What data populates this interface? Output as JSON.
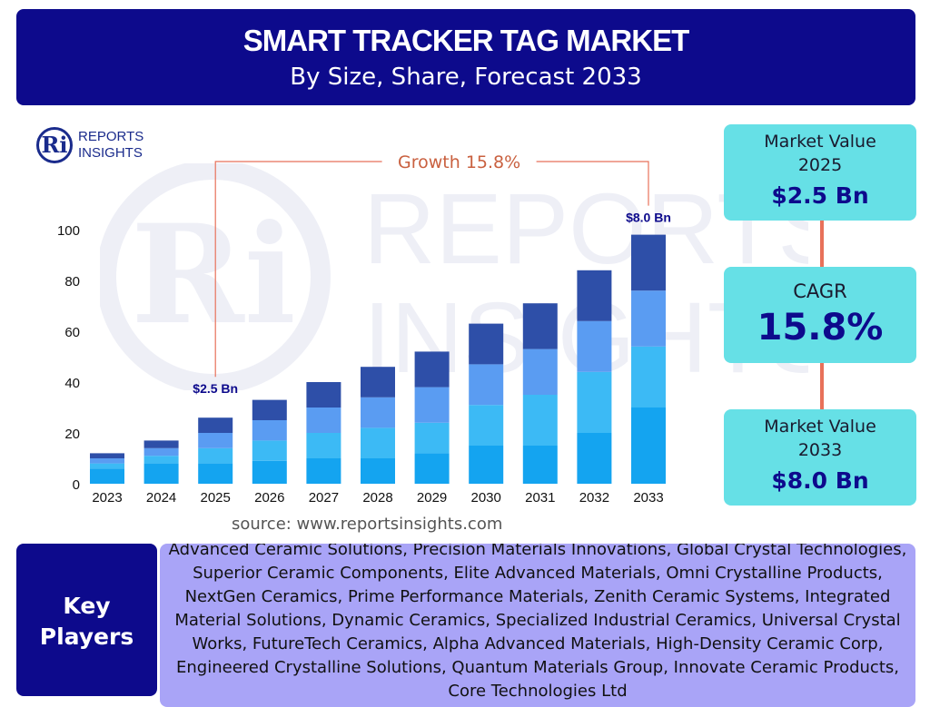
{
  "header": {
    "title": "SMART TRACKER TAG MARKET",
    "subtitle": "By Size, Share, Forecast 2033"
  },
  "logo": {
    "line1": "REPORTS",
    "line2": "INSIGHTS",
    "mark": "Ri"
  },
  "colors": {
    "header_bg": "#0d0a8c",
    "card_bg": "#66e0e6",
    "players_bg": "#a9a4f7",
    "growth_line": "#e8715a",
    "segments": [
      "#14a4f0",
      "#3cbaf5",
      "#5a9cf2",
      "#2e4fa8"
    ]
  },
  "chart_data": {
    "type": "bar",
    "stacked": true,
    "categories": [
      "2023",
      "2024",
      "2025",
      "2026",
      "2027",
      "2028",
      "2029",
      "2030",
      "2031",
      "2032",
      "2033"
    ],
    "series": [
      {
        "values": [
          6,
          8,
          8,
          9,
          10,
          10,
          12,
          15,
          15,
          20,
          30
        ]
      },
      {
        "values": [
          2,
          3,
          6,
          8,
          10,
          12,
          12,
          16,
          20,
          24,
          24
        ]
      },
      {
        "values": [
          2,
          3,
          6,
          8,
          10,
          12,
          14,
          16,
          18,
          20,
          22
        ]
      },
      {
        "values": [
          2,
          3,
          6,
          8,
          10,
          12,
          14,
          16,
          18,
          20,
          22
        ]
      }
    ],
    "ylim": [
      0,
      100
    ],
    "yticks": [
      0,
      20,
      40,
      60,
      80,
      100
    ],
    "grid": false,
    "annotations": {
      "growth_label": "Growth  15.8%",
      "start_label": "$2.5 Bn",
      "start_category": "2025",
      "end_label": "$8.0 Bn",
      "end_category": "2033"
    }
  },
  "cards": {
    "value_2025": {
      "label_line1": "Market Value",
      "label_line2": "2025",
      "value": "$2.5 Bn"
    },
    "cagr": {
      "label": "CAGR",
      "value": "15.8%"
    },
    "value_2033": {
      "label_line1": "Market Value",
      "label_line2": "2033",
      "value": "$8.0 Bn"
    }
  },
  "source": "source: www.reportsinsights.com",
  "key_players": {
    "label_line1": "Key",
    "label_line2": "Players",
    "text": "Advanced Ceramic Solutions, Precision Materials Innovations, Global Crystal Technologies, Superior Ceramic Components, Elite Advanced Materials, Omni Crystalline Products, NextGen Ceramics, Prime Performance Materials, Zenith Ceramic Systems, Integrated Material Solutions, Dynamic Ceramics, Specialized Industrial Ceramics, Universal Crystal Works, FutureTech Ceramics, Alpha Advanced Materials, High-Density Ceramic Corp, Engineered Crystalline Solutions, Quantum Materials Group, Innovate Ceramic Products, Core Technologies Ltd"
  }
}
